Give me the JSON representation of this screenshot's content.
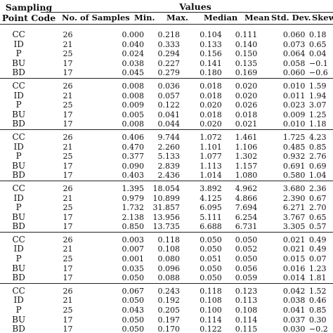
{
  "header": {
    "sampling_point_code": "Sampling Point Code",
    "values": "Values",
    "columns": [
      "No. of Samples",
      "Min.",
      "Max.",
      "Median",
      "Mean",
      "Std. Dev.",
      "Skew"
    ]
  },
  "groups": [
    {
      "rows": [
        {
          "code": "CC",
          "n": "26",
          "min": "0.000",
          "max": "0.218",
          "median": "0.104",
          "mean": "0.111",
          "sd": "0.060",
          "skew": "0.18"
        },
        {
          "code": "ID",
          "n": "21",
          "min": "0.040",
          "max": "0.333",
          "median": "0.133",
          "mean": "0.140",
          "sd": "0.073",
          "skew": "0.65"
        },
        {
          "code": "P",
          "n": "25",
          "min": "0.024",
          "max": "0.294",
          "median": "0.156",
          "mean": "0.150",
          "sd": "0.064",
          "skew": "0.04"
        },
        {
          "code": "BU",
          "n": "17",
          "min": "0.038",
          "max": "0.227",
          "median": "0.141",
          "mean": "0.135",
          "sd": "0.058",
          "skew": "−0.1"
        },
        {
          "code": "BD",
          "n": "17",
          "min": "0.045",
          "max": "0.279",
          "median": "0.180",
          "mean": "0.169",
          "sd": "0.060",
          "skew": "−0.6"
        }
      ]
    },
    {
      "rows": [
        {
          "code": "CC",
          "n": "26",
          "min": "0.008",
          "max": "0.036",
          "median": "0.018",
          "mean": "0.020",
          "sd": "0.010",
          "skew": "1.59"
        },
        {
          "code": "ID",
          "n": "21",
          "min": "0.008",
          "max": "0.057",
          "median": "0.018",
          "mean": "0.020",
          "sd": "0.011",
          "skew": "1.94"
        },
        {
          "code": "P",
          "n": "25",
          "min": "0.009",
          "max": "0.122",
          "median": "0.020",
          "mean": "0.026",
          "sd": "0.023",
          "skew": "3.07"
        },
        {
          "code": "BU",
          "n": "17",
          "min": "0.005",
          "max": "0.041",
          "median": "0.018",
          "mean": "0.018",
          "sd": "0.009",
          "skew": "1.25"
        },
        {
          "code": "BD",
          "n": "17",
          "min": "0.008",
          "max": "0.044",
          "median": "0.020",
          "mean": "0.021",
          "sd": "0.010",
          "skew": "1.18"
        }
      ]
    },
    {
      "rows": [
        {
          "code": "CC",
          "n": "26",
          "min": "0.406",
          "max": "9.744",
          "median": "1.072",
          "mean": "1.461",
          "sd": "1.725",
          "skew": "4.23"
        },
        {
          "code": "ID",
          "n": "21",
          "min": "0.470",
          "max": "2.260",
          "median": "1.101",
          "mean": "1.106",
          "sd": "0.485",
          "skew": "0.85"
        },
        {
          "code": "P",
          "n": "25",
          "min": "0.377",
          "max": "5.133",
          "median": "1.077",
          "mean": "1.302",
          "sd": "0.932",
          "skew": "2.76"
        },
        {
          "code": "BU",
          "n": "17",
          "min": "0.090",
          "max": "2.839",
          "median": "1.113",
          "mean": "1.157",
          "sd": "0.691",
          "skew": "0.69"
        },
        {
          "code": "BD",
          "n": "17",
          "min": "0.403",
          "max": "2.436",
          "median": "1.014",
          "mean": "1.080",
          "sd": "0.580",
          "skew": "1.04"
        }
      ]
    },
    {
      "rows": [
        {
          "code": "CC",
          "n": "26",
          "min": "1.395",
          "max": "18.054",
          "median": "3.892",
          "mean": "4.962",
          "sd": "3.680",
          "skew": "2.36"
        },
        {
          "code": "ID",
          "n": "21",
          "min": "0.979",
          "max": "10.899",
          "median": "4.125",
          "mean": "4.866",
          "sd": "2.390",
          "skew": "0.67"
        },
        {
          "code": "P",
          "n": "25",
          "min": "1.732",
          "max": "31.857",
          "median": "6.095",
          "mean": "7.694",
          "sd": "6.271",
          "skew": "2.70"
        },
        {
          "code": "BU",
          "n": "17",
          "min": "2.138",
          "max": "13.956",
          "median": "5.111",
          "mean": "6.254",
          "sd": "3.767",
          "skew": "0.65"
        },
        {
          "code": "BD",
          "n": "17",
          "min": "0.850",
          "max": "13.735",
          "median": "6.688",
          "mean": "6.731",
          "sd": "3.305",
          "skew": "0.57"
        }
      ]
    },
    {
      "rows": [
        {
          "code": "CC",
          "n": "26",
          "min": "0.003",
          "max": "0.118",
          "median": "0.050",
          "mean": "0.050",
          "sd": "0.021",
          "skew": "0.49"
        },
        {
          "code": "ID",
          "n": "21",
          "min": "0.007",
          "max": "0.108",
          "median": "0.050",
          "mean": "0.052",
          "sd": "0.021",
          "skew": "0.49"
        },
        {
          "code": "P",
          "n": "25",
          "min": "0.001",
          "max": "0.080",
          "median": "0.051",
          "mean": "0.050",
          "sd": "0.015",
          "skew": "0.07"
        },
        {
          "code": "BU",
          "n": "17",
          "min": "0.035",
          "max": "0.096",
          "median": "0.050",
          "mean": "0.056",
          "sd": "0.016",
          "skew": "1.23"
        },
        {
          "code": "BD",
          "n": "17",
          "min": "0.050",
          "max": "0.088",
          "median": "0.050",
          "mean": "0.059",
          "sd": "0.014",
          "skew": "1.81"
        }
      ]
    },
    {
      "rows": [
        {
          "code": "CC",
          "n": "26",
          "min": "0.067",
          "max": "0.243",
          "median": "0.118",
          "mean": "0.123",
          "sd": "0.042",
          "skew": "1.52"
        },
        {
          "code": "ID",
          "n": "21",
          "min": "0.050",
          "max": "0.192",
          "median": "0.108",
          "mean": "0.113",
          "sd": "0.038",
          "skew": "0.46"
        },
        {
          "code": "P",
          "n": "25",
          "min": "0.043",
          "max": "0.205",
          "median": "0.100",
          "mean": "0.108",
          "sd": "0.041",
          "skew": "0.85"
        },
        {
          "code": "BU",
          "n": "17",
          "min": "0.050",
          "max": "0.197",
          "median": "0.114",
          "mean": "0.114",
          "sd": "0.037",
          "skew": "0.30"
        },
        {
          "code": "BD",
          "n": "17",
          "min": "0.050",
          "max": "0.170",
          "median": "0.122",
          "mean": "0.115",
          "sd": "0.030",
          "skew": "−0.2"
        }
      ]
    }
  ]
}
